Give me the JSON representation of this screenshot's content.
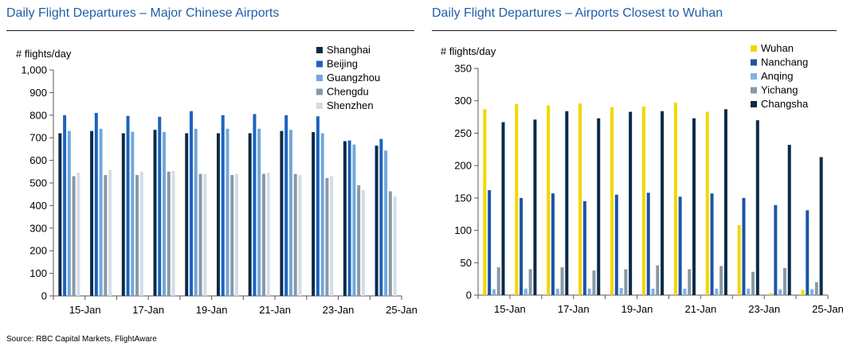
{
  "source": "Source: RBC Capital Markets, FlightAware",
  "chart_data": [
    {
      "type": "bar",
      "title": "Daily Flight Departures – Major Chinese Airports",
      "ylabel": "# flights/day",
      "xlabel": "",
      "ylim": [
        0,
        1000
      ],
      "yticks": [
        0,
        100,
        200,
        300,
        400,
        500,
        600,
        700,
        800,
        900,
        1000
      ],
      "ytick_labels": [
        "0",
        "100",
        "200",
        "300",
        "400",
        "500",
        "600",
        "700",
        "800",
        "900",
        "1,000"
      ],
      "categories": [
        "15-Jan",
        "16-Jan",
        "17-Jan",
        "18-Jan",
        "19-Jan",
        "20-Jan",
        "21-Jan",
        "22-Jan",
        "23-Jan",
        "24-Jan",
        "25-Jan"
      ],
      "xtick_labels": [
        "15-Jan",
        "",
        "17-Jan",
        "",
        "19-Jan",
        "",
        "21-Jan",
        "",
        "23-Jan",
        "",
        "25-Jan"
      ],
      "grid": false,
      "legend": "top-right",
      "series": [
        {
          "name": "Shanghai",
          "color": "#0b2a4a",
          "values": [
            720,
            730,
            720,
            735,
            720,
            720,
            720,
            730,
            725,
            685,
            665
          ]
        },
        {
          "name": "Beijing",
          "color": "#1c63bd",
          "values": [
            800,
            810,
            797,
            793,
            818,
            800,
            805,
            800,
            795,
            688,
            695
          ]
        },
        {
          "name": "Guangzhou",
          "color": "#6fa8dc",
          "values": [
            730,
            740,
            727,
            725,
            740,
            740,
            740,
            735,
            720,
            670,
            643
          ]
        },
        {
          "name": "Chengdu",
          "color": "#8a98a6",
          "values": [
            530,
            535,
            535,
            550,
            540,
            535,
            540,
            540,
            522,
            490,
            463
          ]
        },
        {
          "name": "Shenzhen",
          "color": "#d3dde8",
          "values": [
            545,
            557,
            550,
            553,
            540,
            540,
            545,
            535,
            530,
            468,
            440
          ]
        }
      ]
    },
    {
      "type": "bar",
      "title": "Daily Flight Departures – Airports Closest to Wuhan",
      "ylabel": "# flights/day",
      "xlabel": "",
      "ylim": [
        0,
        350
      ],
      "yticks": [
        0,
        50,
        100,
        150,
        200,
        250,
        300,
        350
      ],
      "ytick_labels": [
        "0",
        "50",
        "100",
        "150",
        "200",
        "250",
        "300",
        "350"
      ],
      "categories": [
        "15-Jan",
        "16-Jan",
        "17-Jan",
        "18-Jan",
        "19-Jan",
        "20-Jan",
        "21-Jan",
        "22-Jan",
        "23-Jan",
        "24-Jan",
        "25-Jan"
      ],
      "xtick_labels": [
        "15-Jan",
        "",
        "17-Jan",
        "",
        "19-Jan",
        "",
        "21-Jan",
        "",
        "23-Jan",
        "",
        "25-Jan"
      ],
      "grid": false,
      "legend": "top-right",
      "series": [
        {
          "name": "Wuhan",
          "color": "#f4d600",
          "values": [
            287,
            295,
            293,
            296,
            290,
            291,
            297,
            283,
            108,
            3,
            8
          ]
        },
        {
          "name": "Nanchang",
          "color": "#1c55a6",
          "values": [
            162,
            150,
            157,
            145,
            155,
            158,
            152,
            157,
            150,
            139,
            131
          ]
        },
        {
          "name": "Anqing",
          "color": "#7fb2e0",
          "values": [
            9,
            10,
            10,
            10,
            11,
            10,
            10,
            10,
            10,
            9,
            9
          ]
        },
        {
          "name": "Yichang",
          "color": "#8a98a6",
          "values": [
            43,
            40,
            43,
            38,
            40,
            46,
            40,
            45,
            36,
            42,
            20
          ]
        },
        {
          "name": "Changsha",
          "color": "#0b2a4a",
          "values": [
            267,
            271,
            284,
            273,
            283,
            284,
            273,
            287,
            270,
            232,
            213
          ]
        }
      ]
    }
  ]
}
